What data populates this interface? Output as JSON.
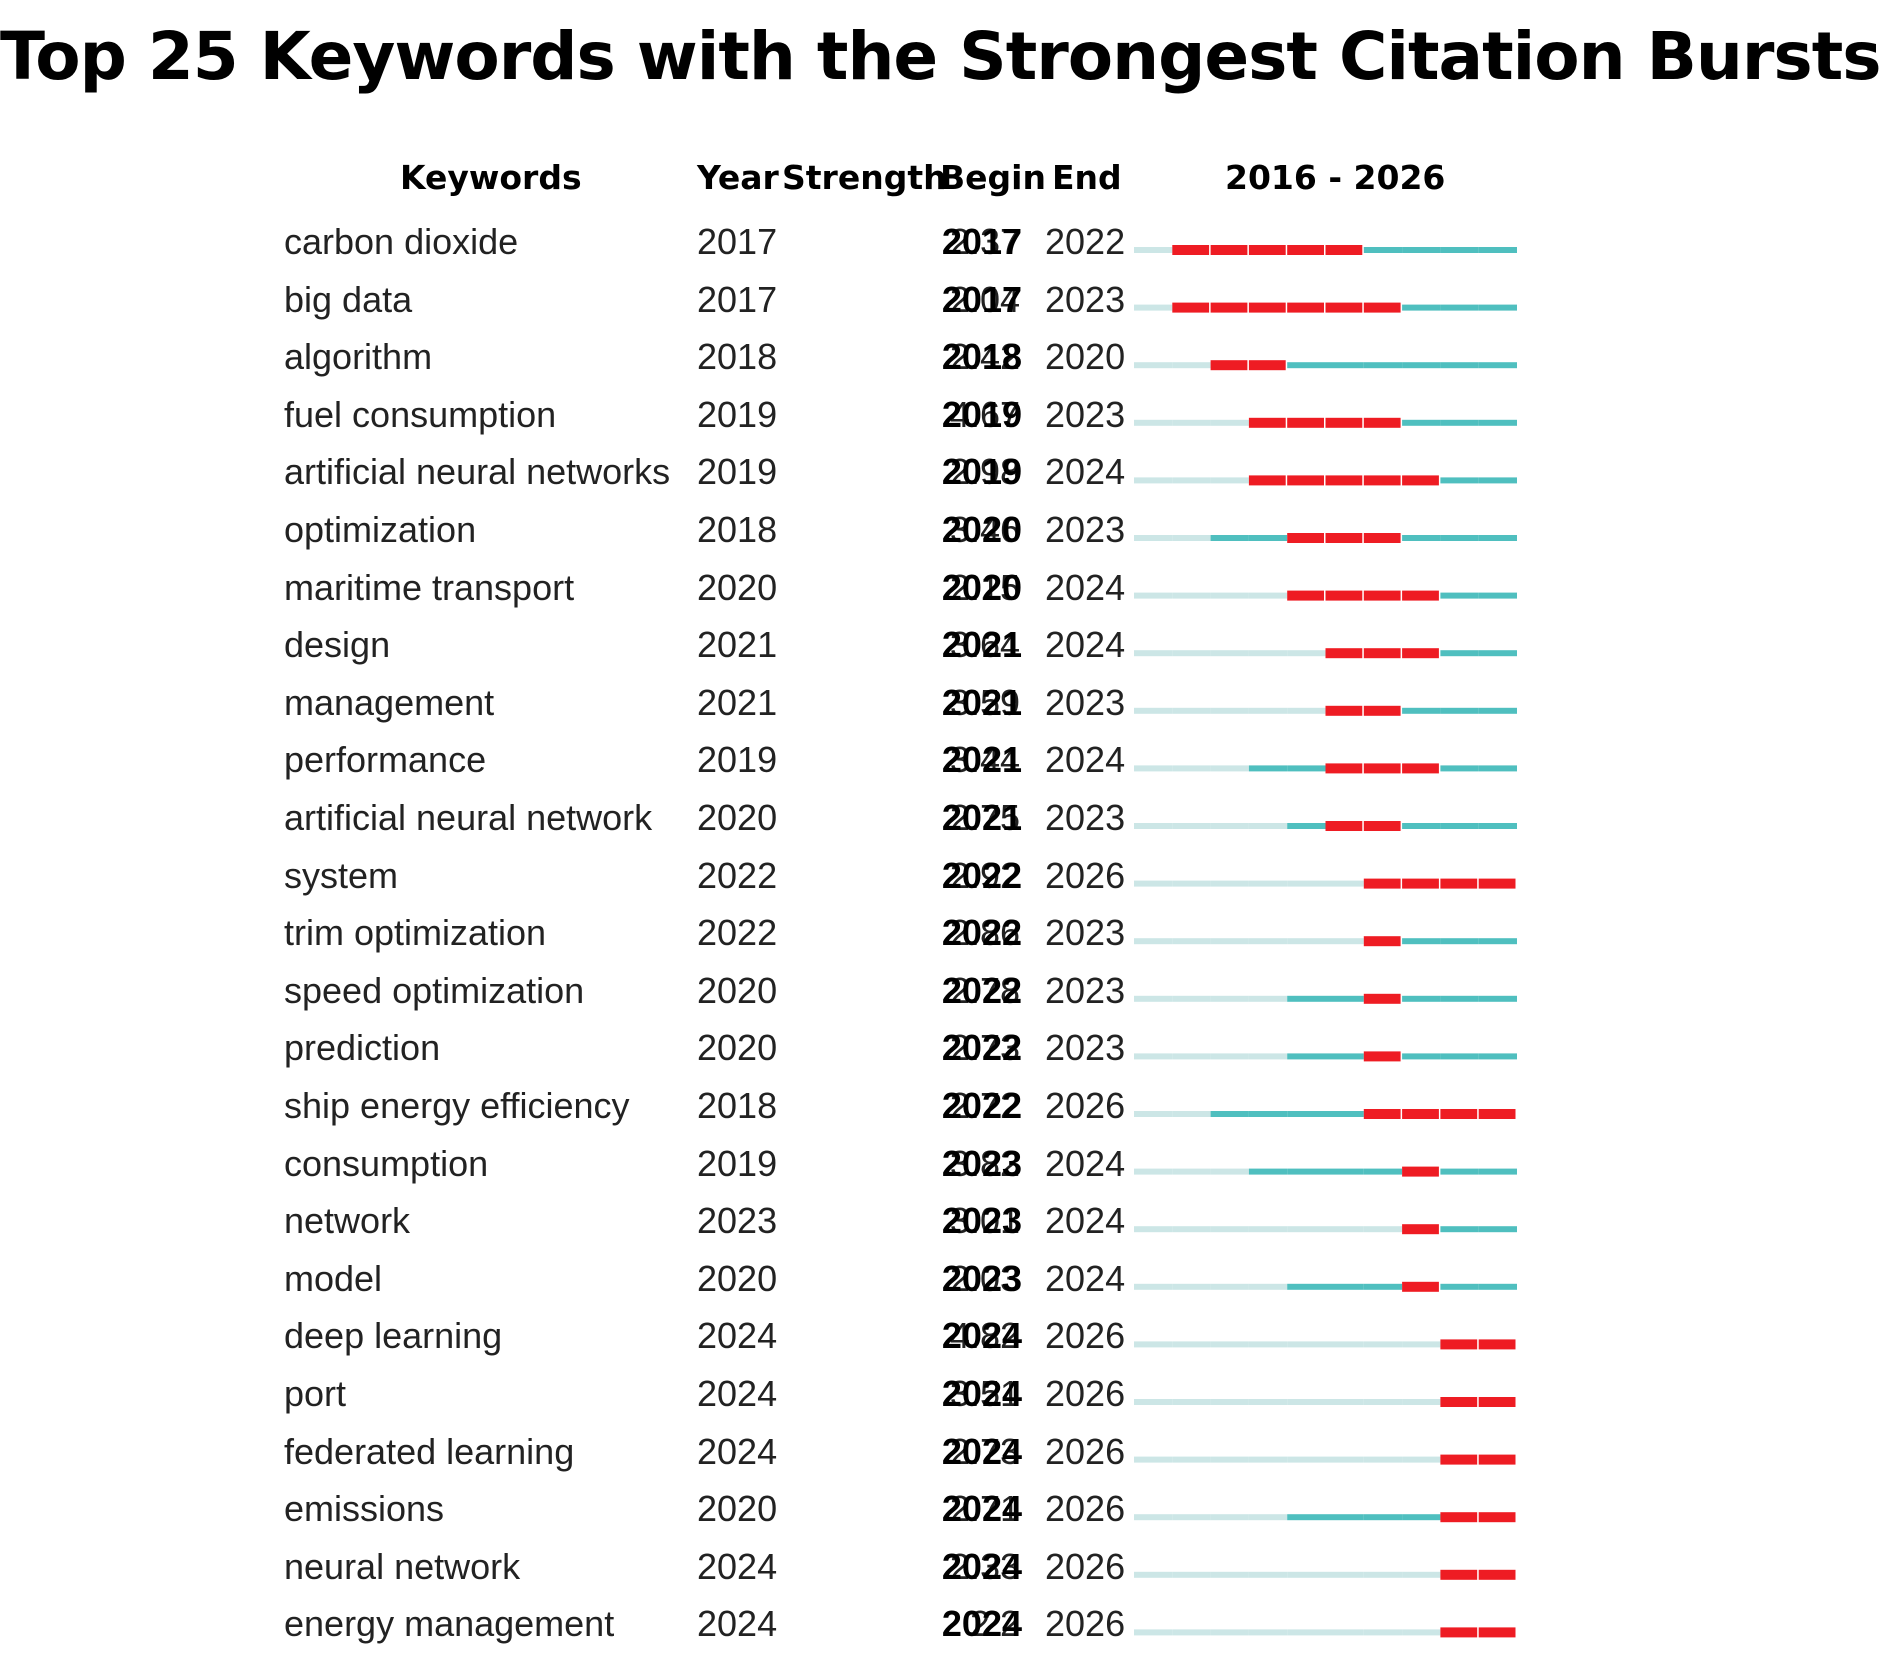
{
  "chart_data": {
    "type": "table",
    "title": "Top 25 Keywords with the Strongest Citation Bursts",
    "columns": {
      "keywords": "Keywords",
      "year": "Year",
      "strength": "Strength",
      "begin": "Begin",
      "end": "End",
      "range": "2016 - 2026"
    },
    "range_start": 2016,
    "range_end": 2026,
    "colors": {
      "burst": "#ee1c23",
      "active": "#4fbfbf",
      "inactive": "#cce6e6"
    },
    "rows": [
      {
        "keyword": "carbon dioxide",
        "year": "2017",
        "strength": "2.37",
        "begin": "2017",
        "end": "2022"
      },
      {
        "keyword": "big data",
        "year": "2017",
        "strength": "2.04",
        "begin": "2017",
        "end": "2023"
      },
      {
        "keyword": "algorithm",
        "year": "2018",
        "strength": "2.42",
        "begin": "2018",
        "end": "2020"
      },
      {
        "keyword": "fuel consumption",
        "year": "2019",
        "strength": "4.67",
        "begin": "2019",
        "end": "2023"
      },
      {
        "keyword": "artificial neural networks",
        "year": "2019",
        "strength": "2.98",
        "begin": "2019",
        "end": "2024"
      },
      {
        "keyword": "optimization",
        "year": "2018",
        "strength": "3.46",
        "begin": "2020",
        "end": "2023"
      },
      {
        "keyword": "maritime transport",
        "year": "2020",
        "strength": "2.15",
        "begin": "2020",
        "end": "2024"
      },
      {
        "keyword": "design",
        "year": "2021",
        "strength": "3.64",
        "begin": "2021",
        "end": "2024"
      },
      {
        "keyword": "management",
        "year": "2021",
        "strength": "3.59",
        "begin": "2021",
        "end": "2023"
      },
      {
        "keyword": "performance",
        "year": "2019",
        "strength": "3.44",
        "begin": "2021",
        "end": "2024"
      },
      {
        "keyword": "artificial neural network",
        "year": "2020",
        "strength": "2.75",
        "begin": "2021",
        "end": "2023"
      },
      {
        "keyword": "system",
        "year": "2022",
        "strength": "2.92",
        "begin": "2022",
        "end": "2026"
      },
      {
        "keyword": "trim optimization",
        "year": "2022",
        "strength": "2.86",
        "begin": "2022",
        "end": "2023"
      },
      {
        "keyword": "speed optimization",
        "year": "2020",
        "strength": "2.78",
        "begin": "2022",
        "end": "2023"
      },
      {
        "keyword": "prediction",
        "year": "2020",
        "strength": "2.73",
        "begin": "2022",
        "end": "2023"
      },
      {
        "keyword": "ship energy efficiency",
        "year": "2018",
        "strength": "2.72",
        "begin": "2022",
        "end": "2026"
      },
      {
        "keyword": "consumption",
        "year": "2019",
        "strength": "3.82",
        "begin": "2023",
        "end": "2024"
      },
      {
        "keyword": "network",
        "year": "2023",
        "strength": "3.01",
        "begin": "2023",
        "end": "2024"
      },
      {
        "keyword": "model",
        "year": "2020",
        "strength": "2.03",
        "begin": "2023",
        "end": "2024"
      },
      {
        "keyword": "deep learning",
        "year": "2024",
        "strength": "4.82",
        "begin": "2024",
        "end": "2026"
      },
      {
        "keyword": "port",
        "year": "2024",
        "strength": "3.51",
        "begin": "2024",
        "end": "2026"
      },
      {
        "keyword": "federated learning",
        "year": "2024",
        "strength": "2.73",
        "begin": "2024",
        "end": "2026"
      },
      {
        "keyword": "emissions",
        "year": "2020",
        "strength": "2.71",
        "begin": "2024",
        "end": "2026"
      },
      {
        "keyword": "neural network",
        "year": "2024",
        "strength": "2.33",
        "begin": "2024",
        "end": "2026"
      },
      {
        "keyword": "energy management",
        "year": "2024",
        "strength": "2.2",
        "begin": "2024",
        "end": "2026"
      }
    ]
  }
}
